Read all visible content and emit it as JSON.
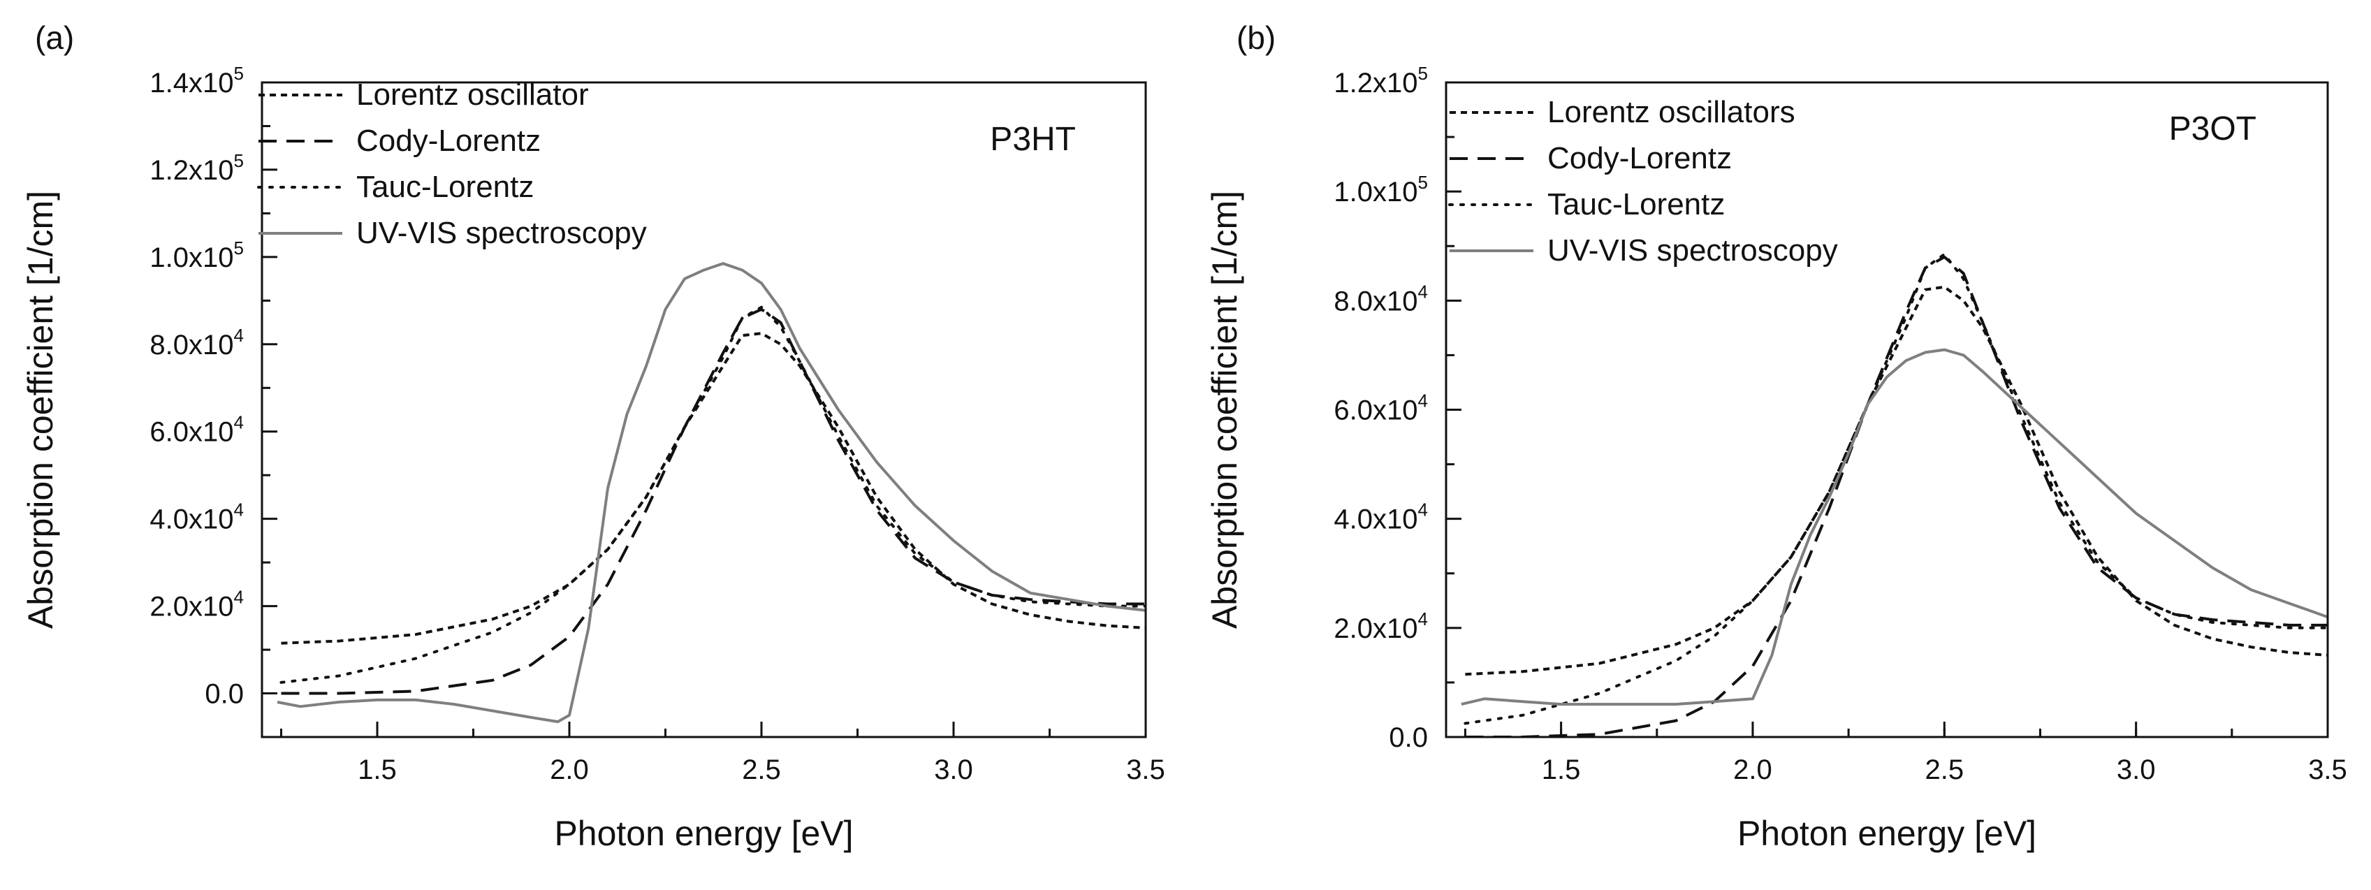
{
  "chart_data": [
    {
      "type": "line",
      "panel_label": "(a)",
      "sample": "P3HT",
      "xlabel": "Photon energy [eV]",
      "ylabel": "Absorption coefficient [1/cm]",
      "xlim": [
        1.2,
        3.5
      ],
      "ylim": [
        -10000,
        140000
      ],
      "x_ticks": [
        1.5,
        2.0,
        2.5,
        3.0,
        3.5
      ],
      "x_tick_labels": [
        "1.5",
        "2.0",
        "2.5",
        "3.0",
        "3.5"
      ],
      "y_ticks": [
        0,
        20000,
        40000,
        60000,
        80000,
        100000,
        120000,
        140000
      ],
      "y_tick_labels": [
        {
          "mant": "0.0",
          "exp": ""
        },
        {
          "mant": "2.0x10",
          "exp": "4"
        },
        {
          "mant": "4.0x10",
          "exp": "4"
        },
        {
          "mant": "6.0x10",
          "exp": "4"
        },
        {
          "mant": "8.0x10",
          "exp": "4"
        },
        {
          "mant": "1.0x10",
          "exp": "5"
        },
        {
          "mant": "1.2x10",
          "exp": "5"
        },
        {
          "mant": "1.4x10",
          "exp": "5"
        }
      ],
      "legend": [
        "Lorentz oscillator",
        "Cody-Lorentz",
        "Tauc-Lorentz",
        "UV-VIS spectroscopy"
      ],
      "series": [
        {
          "name": "Lorentz oscillator",
          "style": "short-dash",
          "color": "#111111",
          "x": [
            1.25,
            1.4,
            1.6,
            1.8,
            1.9,
            2.0,
            2.1,
            2.2,
            2.3,
            2.4,
            2.45,
            2.5,
            2.55,
            2.6,
            2.7,
            2.8,
            2.9,
            3.0,
            3.1,
            3.2,
            3.3,
            3.4,
            3.5
          ],
          "y": [
            11500,
            12000,
            13500,
            17000,
            20000,
            25000,
            33000,
            45000,
            61000,
            75000,
            82000,
            82500,
            80000,
            75000,
            61000,
            45000,
            33000,
            25000,
            20500,
            18000,
            16500,
            15500,
            15000
          ]
        },
        {
          "name": "Cody-Lorentz",
          "style": "long-dash",
          "color": "#111111",
          "x": [
            1.25,
            1.4,
            1.6,
            1.8,
            1.9,
            2.0,
            2.1,
            2.2,
            2.3,
            2.4,
            2.45,
            2.5,
            2.55,
            2.6,
            2.7,
            2.8,
            2.9,
            3.0,
            3.1,
            3.2,
            3.3,
            3.4,
            3.5
          ],
          "y": [
            0,
            0,
            500,
            3000,
            6500,
            13000,
            25000,
            42000,
            61000,
            78000,
            86000,
            88000,
            85000,
            76000,
            58000,
            42000,
            31000,
            25500,
            22500,
            21500,
            21000,
            20500,
            20500
          ]
        },
        {
          "name": "Tauc-Lorentz",
          "style": "dotted",
          "color": "#111111",
          "x": [
            1.25,
            1.4,
            1.6,
            1.8,
            1.9,
            2.0,
            2.1,
            2.2,
            2.3,
            2.4,
            2.45,
            2.5,
            2.55,
            2.6,
            2.7,
            2.8,
            2.9,
            3.0,
            3.1,
            3.2,
            3.3,
            3.4,
            3.5
          ],
          "y": [
            2500,
            4000,
            8000,
            14000,
            18500,
            25000,
            33000,
            45000,
            61000,
            77000,
            86000,
            88500,
            84000,
            76000,
            59000,
            43000,
            32000,
            25500,
            22500,
            21000,
            20500,
            20000,
            20000
          ]
        },
        {
          "name": "UV-VIS spectroscopy",
          "style": "solid",
          "color": "#7f7f7f",
          "x": [
            1.24,
            1.3,
            1.4,
            1.5,
            1.6,
            1.7,
            1.8,
            1.9,
            1.97,
            2.0,
            2.05,
            2.1,
            2.15,
            2.2,
            2.25,
            2.3,
            2.35,
            2.4,
            2.45,
            2.5,
            2.55,
            2.6,
            2.7,
            2.8,
            2.9,
            3.0,
            3.1,
            3.2,
            3.3,
            3.4,
            3.5
          ],
          "y": [
            -2000,
            -3000,
            -2000,
            -1500,
            -1500,
            -2500,
            -4000,
            -5500,
            -6500,
            -5000,
            15000,
            47000,
            64000,
            75000,
            88000,
            95000,
            97000,
            98500,
            97000,
            94000,
            88000,
            79000,
            65000,
            53000,
            43000,
            35000,
            28000,
            23000,
            21500,
            20000,
            19000
          ]
        }
      ]
    },
    {
      "type": "line",
      "panel_label": "(b)",
      "sample": "P3OT",
      "xlabel": "Photon energy [eV]",
      "ylabel": "Absorption coefficient [1/cm]",
      "xlim": [
        1.2,
        3.5
      ],
      "ylim": [
        0,
        120000
      ],
      "x_ticks": [
        1.5,
        2.0,
        2.5,
        3.0,
        3.5
      ],
      "x_tick_labels": [
        "1.5",
        "2.0",
        "2.5",
        "3.0",
        "3.5"
      ],
      "y_ticks": [
        0,
        20000,
        40000,
        60000,
        80000,
        100000,
        120000
      ],
      "y_tick_labels": [
        {
          "mant": "0.0",
          "exp": ""
        },
        {
          "mant": "2.0x10",
          "exp": "4"
        },
        {
          "mant": "4.0x10",
          "exp": "4"
        },
        {
          "mant": "6.0x10",
          "exp": "4"
        },
        {
          "mant": "8.0x10",
          "exp": "4"
        },
        {
          "mant": "1.0x10",
          "exp": "5"
        },
        {
          "mant": "1.2x10",
          "exp": "5"
        }
      ],
      "legend": [
        "Lorentz oscillators",
        "Cody-Lorentz",
        "Tauc-Lorentz",
        "UV-VIS spectroscopy"
      ],
      "series": [
        {
          "name": "Lorentz oscillators",
          "style": "short-dash",
          "color": "#111111",
          "x": [
            1.25,
            1.4,
            1.6,
            1.8,
            1.9,
            2.0,
            2.1,
            2.2,
            2.3,
            2.4,
            2.45,
            2.5,
            2.55,
            2.6,
            2.7,
            2.8,
            2.9,
            3.0,
            3.1,
            3.2,
            3.3,
            3.4,
            3.5
          ],
          "y": [
            11500,
            12000,
            13500,
            17000,
            20000,
            25000,
            33000,
            45000,
            61000,
            75000,
            82000,
            82500,
            80000,
            75000,
            61000,
            45000,
            33000,
            25000,
            20500,
            18000,
            16500,
            15500,
            15000
          ]
        },
        {
          "name": "Cody-Lorentz",
          "style": "long-dash",
          "color": "#111111",
          "x": [
            1.25,
            1.4,
            1.6,
            1.8,
            1.9,
            2.0,
            2.1,
            2.2,
            2.3,
            2.4,
            2.45,
            2.5,
            2.55,
            2.6,
            2.7,
            2.8,
            2.9,
            3.0,
            3.1,
            3.2,
            3.3,
            3.4,
            3.5
          ],
          "y": [
            0,
            0,
            500,
            3000,
            6500,
            13000,
            25000,
            42000,
            61000,
            78000,
            86000,
            88000,
            85000,
            76000,
            58000,
            42000,
            31000,
            25500,
            22500,
            21500,
            21000,
            20500,
            20500
          ]
        },
        {
          "name": "Tauc-Lorentz",
          "style": "dotted",
          "color": "#111111",
          "x": [
            1.25,
            1.4,
            1.6,
            1.8,
            1.9,
            2.0,
            2.1,
            2.2,
            2.3,
            2.4,
            2.45,
            2.5,
            2.55,
            2.6,
            2.7,
            2.8,
            2.9,
            3.0,
            3.1,
            3.2,
            3.3,
            3.4,
            3.5
          ],
          "y": [
            2500,
            4000,
            8000,
            14000,
            18500,
            25000,
            33000,
            45000,
            61000,
            77000,
            86000,
            88500,
            84000,
            76000,
            59000,
            43000,
            32000,
            25500,
            22500,
            21000,
            20500,
            20000,
            20000
          ]
        },
        {
          "name": "UV-VIS spectroscopy",
          "style": "solid",
          "color": "#7f7f7f",
          "x": [
            1.24,
            1.3,
            1.4,
            1.5,
            1.6,
            1.7,
            1.8,
            1.9,
            2.0,
            2.05,
            2.1,
            2.15,
            2.2,
            2.25,
            2.3,
            2.35,
            2.4,
            2.45,
            2.5,
            2.55,
            2.6,
            2.7,
            2.8,
            2.9,
            3.0,
            3.1,
            3.2,
            3.3,
            3.4,
            3.5
          ],
          "y": [
            6000,
            7000,
            6500,
            6000,
            6000,
            6000,
            6000,
            6500,
            7000,
            15000,
            28000,
            37000,
            44000,
            52000,
            61000,
            66000,
            69000,
            70500,
            71000,
            70000,
            67000,
            60500,
            54000,
            47500,
            41000,
            36000,
            31000,
            27000,
            24500,
            22000
          ]
        }
      ]
    }
  ]
}
